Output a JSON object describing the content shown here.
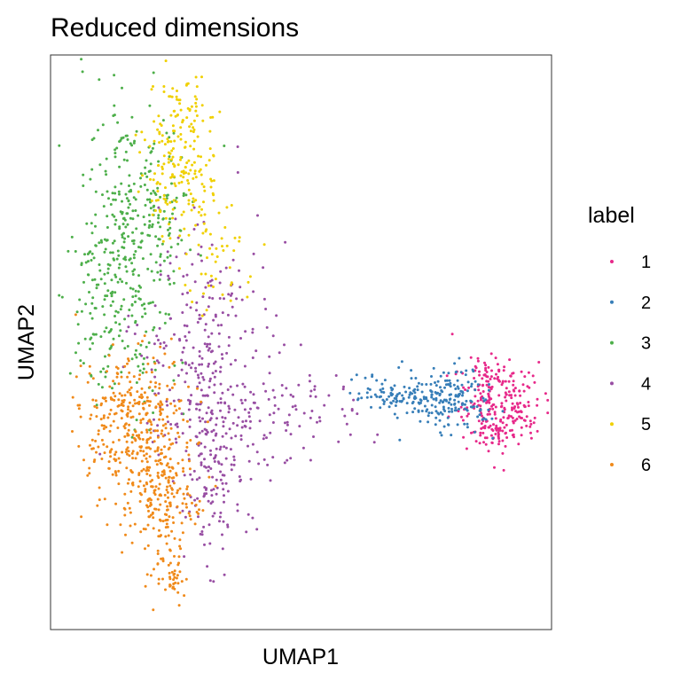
{
  "chart_data": {
    "type": "scatter",
    "title": "Reduced dimensions",
    "xlabel": "UMAP1",
    "ylabel": "UMAP2",
    "axis_ticks_shown": false,
    "grid": false,
    "legend": {
      "title": "label",
      "placement": "right"
    },
    "series": [
      {
        "name": "1",
        "color": "#E7298A",
        "clusters": [
          {
            "center": [
              9.0,
              -0.8
            ],
            "spread": [
              0.95,
              0.75
            ],
            "count": 230
          },
          {
            "center": [
              8.55,
              0.15
            ],
            "spread": [
              0.35,
              0.3
            ],
            "count": 30
          },
          {
            "center": [
              8.8,
              -1.6
            ],
            "spread": [
              0.45,
              0.25
            ],
            "count": 30
          }
        ]
      },
      {
        "name": "2",
        "color": "#377EB8",
        "clusters": [
          {
            "center": [
              7.0,
              -0.6
            ],
            "spread": [
              0.8,
              0.55
            ],
            "count": 170
          },
          {
            "center": [
              5.2,
              -0.6
            ],
            "spread": [
              0.6,
              0.22
            ],
            "count": 70
          },
          {
            "center": [
              4.0,
              -0.3
            ],
            "spread": [
              0.45,
              0.3
            ],
            "count": 25
          }
        ]
      },
      {
        "name": "3",
        "color": "#4DAF4A",
        "clusters": [
          {
            "center": [
              -5.6,
              4.2
            ],
            "spread": [
              1.05,
              2.3
            ],
            "count": 300
          },
          {
            "center": [
              -4.4,
              5.8
            ],
            "spread": [
              0.85,
              1.2
            ],
            "count": 90
          },
          {
            "center": [
              -6.3,
              1.5
            ],
            "spread": [
              0.6,
              1.4
            ],
            "count": 60
          }
        ]
      },
      {
        "name": "4",
        "color": "#984EA3",
        "clusters": [
          {
            "center": [
              -2.3,
              0.3
            ],
            "spread": [
              1.3,
              2.4
            ],
            "count": 330
          },
          {
            "center": [
              -2.2,
              -3.3
            ],
            "spread": [
              0.6,
              1.2
            ],
            "count": 90
          },
          {
            "center": [
              1.0,
              -1.1
            ],
            "spread": [
              1.3,
              0.7
            ],
            "count": 80
          }
        ]
      },
      {
        "name": "5",
        "color": "#F0D000",
        "clusters": [
          {
            "center": [
              -3.55,
              7.1
            ],
            "spread": [
              0.7,
              1.2
            ],
            "count": 180
          },
          {
            "center": [
              -2.0,
              3.8
            ],
            "spread": [
              0.75,
              0.9
            ],
            "count": 50
          },
          {
            "center": [
              -3.2,
              9.0
            ],
            "spread": [
              0.35,
              0.5
            ],
            "count": 30
          }
        ]
      },
      {
        "name": "6",
        "color": "#F08A1A",
        "clusters": [
          {
            "center": [
              -5.3,
              -1.3
            ],
            "spread": [
              1.15,
              1.2
            ],
            "count": 330
          },
          {
            "center": [
              -4.3,
              -3.7
            ],
            "spread": [
              0.8,
              1.15
            ],
            "count": 220
          },
          {
            "center": [
              -3.8,
              -6.3
            ],
            "spread": [
              0.35,
              0.35
            ],
            "count": 40
          }
        ]
      }
    ],
    "xlim": [
      -8.5,
      11.0
    ],
    "ylim": [
      -8.0,
      10.5
    ]
  }
}
